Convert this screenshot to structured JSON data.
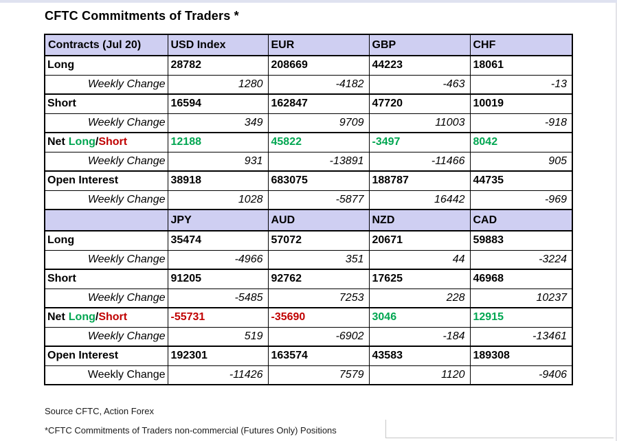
{
  "title": "CFTC Commitments of Traders *",
  "labels": {
    "corner": "Contracts (Jul 20)",
    "net_parts": {
      "p1": "Net",
      "p2": "Long",
      "p3": "/",
      "p4": "Short"
    }
  },
  "footer": {
    "source": "Source CFTC, Action Forex",
    "note": "*CFTC Commitments of Traders non-commercial (Futures Only) Positions"
  },
  "colors": {
    "header_bg": "#cfcff2",
    "net_long_green": "#00a651",
    "net_short_red": "#c00000",
    "border": "#000000"
  },
  "chart_data": {
    "type": "table",
    "title": "CFTC Commitments of Traders *",
    "corner_header": "Contracts (Jul 20)",
    "groups": [
      {
        "columns": [
          "USD Index",
          "EUR",
          "GBP",
          "CHF"
        ],
        "rows": [
          {
            "label": "Long",
            "values": [
              28782,
              208669,
              44223,
              18061
            ]
          },
          {
            "label": "Weekly Change",
            "values": [
              1280,
              -4182,
              -463,
              -13
            ]
          },
          {
            "label": "Short",
            "values": [
              16594,
              162847,
              47720,
              10019
            ]
          },
          {
            "label": "Weekly Change",
            "values": [
              349,
              9709,
              11003,
              -918
            ]
          },
          {
            "label": "Net Long/Short",
            "values": [
              12188,
              45822,
              -3497,
              8042
            ]
          },
          {
            "label": "Weekly Change",
            "values": [
              931,
              -13891,
              -11466,
              905
            ]
          },
          {
            "label": "Open Interest",
            "values": [
              38918,
              683075,
              188787,
              44735
            ]
          },
          {
            "label": "Weekly Change",
            "values": [
              1028,
              -5877,
              16442,
              -969
            ]
          }
        ]
      },
      {
        "columns": [
          "JPY",
          "AUD",
          "NZD",
          "CAD"
        ],
        "rows": [
          {
            "label": "Long",
            "values": [
              35474,
              57072,
              20671,
              59883
            ]
          },
          {
            "label": "Weekly Change",
            "values": [
              -4966,
              351,
              44,
              -3224
            ]
          },
          {
            "label": "Short",
            "values": [
              91205,
              92762,
              17625,
              46968
            ]
          },
          {
            "label": "Weekly Change",
            "values": [
              -5485,
              7253,
              228,
              10237
            ]
          },
          {
            "label": "Net Long/Short",
            "values": [
              -55731,
              -35690,
              3046,
              12915
            ]
          },
          {
            "label": "Weekly Change",
            "values": [
              519,
              -6902,
              -184,
              -13461
            ]
          },
          {
            "label": "Open Interest",
            "values": [
              192301,
              163574,
              43583,
              189308
            ]
          },
          {
            "label": "Weekly Change",
            "values": [
              -11426,
              7579,
              1120,
              -9406
            ]
          }
        ]
      }
    ],
    "notes": [
      "Source CFTC, Action Forex",
      "*CFTC Commitments of Traders non-commercial (Futures Only) Positions"
    ]
  }
}
